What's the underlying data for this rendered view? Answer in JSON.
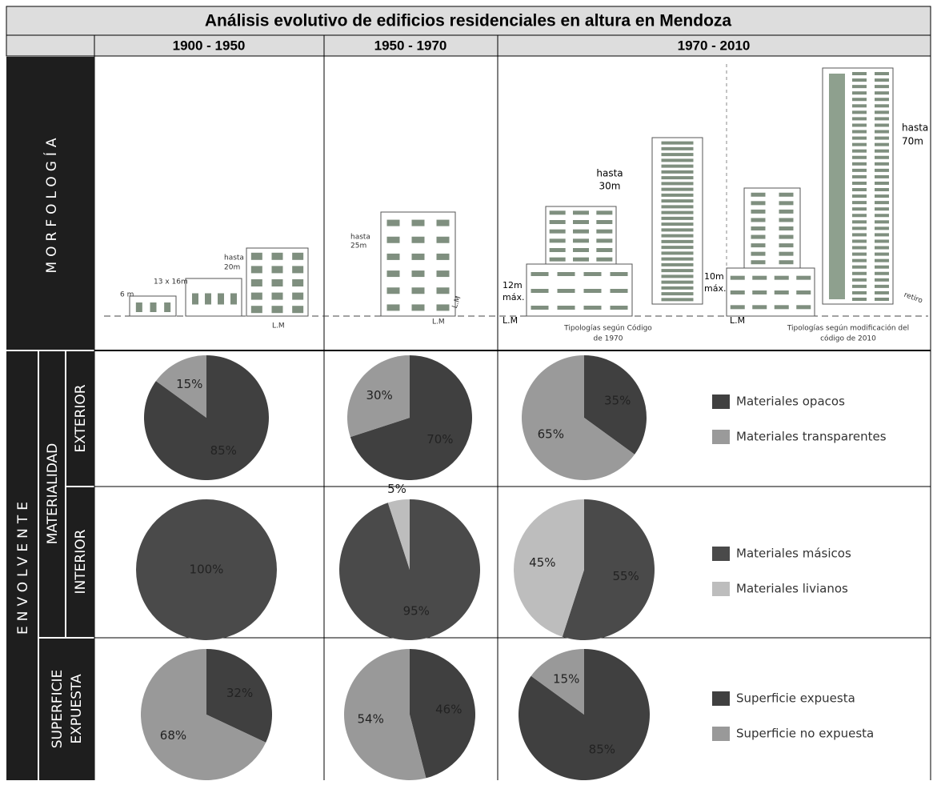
{
  "title": "Análisis evolutivo de edificios residenciales en altura en Mendoza",
  "columns": [
    "1900 - 1950",
    "1950 - 1970",
    "1970 - 2010"
  ],
  "row_labels": {
    "morfologia": "MORFOLOGÍA",
    "envolvente": "ENVOLVENTE",
    "materialidad": "MATERIALIDAD",
    "exterior": "EXTERIOR",
    "interior": "INTERIOR",
    "superficie": [
      "SUPERFICIE",
      "EXPUESTA"
    ]
  },
  "morphology": [
    [
      "6 m",
      "13 x 16m",
      "hasta",
      "20m",
      "L.M"
    ],
    [
      "hasta",
      "25m",
      "L.M",
      "L.M"
    ],
    [
      "hasta",
      "30m",
      "12m",
      "máx.",
      "L.M",
      "Tipologías según Código",
      "de 1970",
      "10m",
      "máx.",
      "L.M",
      "retiro",
      "hasta",
      "70m",
      "Tipologías según modificación del",
      "código de 2010"
    ]
  ],
  "chart_data": [
    {
      "type": "pie",
      "categories": [
        "Materiales opacos",
        "Materiales transparentes"
      ],
      "colors": [
        "#404040",
        "#9a9a9a"
      ],
      "pies": [
        {
          "values": [
            85,
            15
          ],
          "value_labels": [
            "85%",
            "15%"
          ]
        },
        {
          "values": [
            70,
            30
          ],
          "value_labels": [
            "70%",
            "30%"
          ]
        },
        {
          "values": [
            35,
            65
          ],
          "value_labels": [
            "35%",
            "65%"
          ]
        }
      ]
    },
    {
      "type": "pie",
      "categories": [
        "Materiales másicos",
        "Materiales livianos"
      ],
      "colors": [
        "#4a4a4a",
        "#bdbdbd"
      ],
      "pies": [
        {
          "values": [
            100,
            0
          ],
          "value_labels": [
            "100%",
            null
          ]
        },
        {
          "values": [
            95,
            5
          ],
          "value_labels": [
            "95%",
            "5%"
          ]
        },
        {
          "values": [
            55,
            45
          ],
          "value_labels": [
            "55%",
            "45%"
          ]
        }
      ]
    },
    {
      "type": "pie",
      "categories": [
        "Superficie expuesta",
        "Superficie no expuesta"
      ],
      "colors": [
        "#404040",
        "#999999"
      ],
      "pies": [
        {
          "values": [
            32,
            68
          ],
          "value_labels": [
            "32%",
            "68%"
          ]
        },
        {
          "values": [
            46,
            54
          ],
          "value_labels": [
            "46%",
            "54%"
          ]
        },
        {
          "values": [
            85,
            15
          ],
          "value_labels": [
            "85%",
            "15%"
          ]
        }
      ]
    }
  ]
}
